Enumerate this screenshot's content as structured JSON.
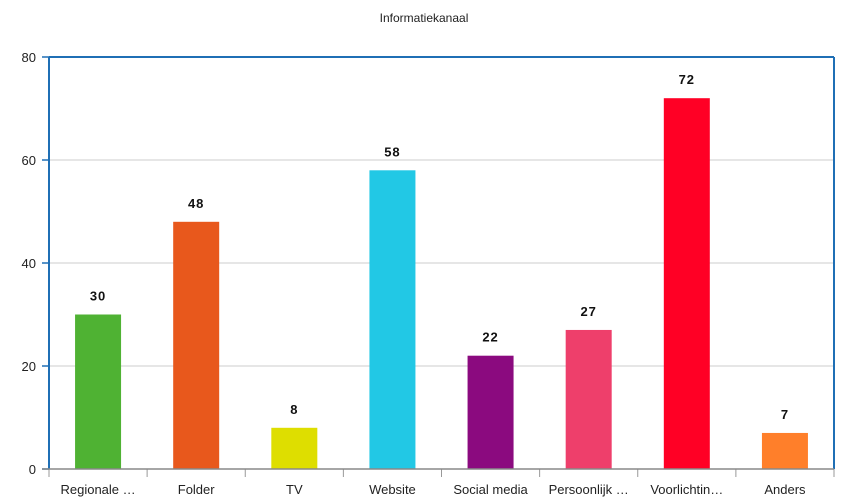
{
  "chart_data": {
    "type": "bar",
    "title": "Informatiekanaal",
    "xlabel": "",
    "ylabel": "",
    "ylim": [
      0,
      80
    ],
    "yticks": [
      0,
      20,
      40,
      60,
      80
    ],
    "grid": true,
    "legend": "none",
    "categories": [
      "Regionale …",
      "Folder",
      "TV",
      "Website",
      "Social media",
      "Persoonlijk …",
      "Voorlichtin…",
      "Anders"
    ],
    "values": [
      30,
      48,
      8,
      58,
      22,
      27,
      72,
      7
    ],
    "value_labels": [
      "30",
      "48",
      "8",
      "58",
      "22",
      "27",
      "72",
      "7"
    ],
    "colors": [
      "#4fb233",
      "#e8581c",
      "#dede00",
      "#22c8e5",
      "#8b0a7f",
      "#ee3f6b",
      "#ff0025",
      "#ff7f2a"
    ],
    "axis_color": "#1f6fb5",
    "grid_color": "#cccccc"
  }
}
